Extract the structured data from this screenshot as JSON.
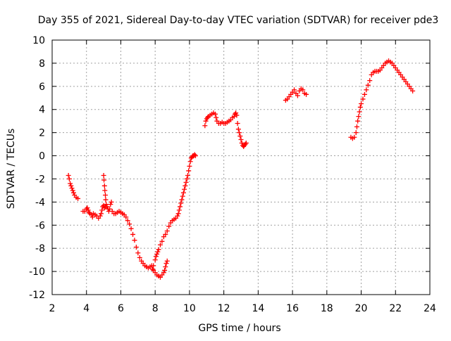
{
  "chart_data": {
    "type": "scatter",
    "title": "Day 355 of 2021, Sidereal Day-to-day VTEC variation (SDTVAR) for receiver pde3",
    "xlabel": "GPS time / hours",
    "ylabel": "SDTVAR / TECUs",
    "xlim": [
      2,
      24
    ],
    "ylim": [
      -12,
      10
    ],
    "xticks": [
      "2",
      "4",
      "6",
      "8",
      "10",
      "12",
      "14",
      "16",
      "18",
      "20",
      "22",
      "24"
    ],
    "yticks": [
      "-12",
      "-10",
      "-8",
      "-6",
      "-4",
      "-2",
      "0",
      "2",
      "4",
      "6",
      "8",
      "10"
    ],
    "grid": true,
    "marker": "plus",
    "color": "#ff0000",
    "series": [
      {
        "points": [
          [
            2.95,
            -1.7
          ],
          [
            3.0,
            -2.0
          ],
          [
            3.05,
            -2.4
          ],
          [
            3.1,
            -2.6
          ],
          [
            3.15,
            -2.8
          ],
          [
            3.2,
            -3.0
          ],
          [
            3.25,
            -3.2
          ],
          [
            3.3,
            -3.4
          ],
          [
            3.4,
            -3.6
          ],
          [
            3.5,
            -3.7
          ],
          [
            3.8,
            -4.8
          ],
          [
            3.9,
            -4.8
          ],
          [
            4.0,
            -4.6
          ],
          [
            4.05,
            -4.5
          ],
          [
            4.1,
            -4.7
          ],
          [
            4.15,
            -4.9
          ],
          [
            4.2,
            -5.0
          ],
          [
            4.3,
            -5.1
          ],
          [
            4.35,
            -5.3
          ],
          [
            4.4,
            -5.0
          ],
          [
            4.5,
            -5.1
          ],
          [
            4.6,
            -5.2
          ],
          [
            4.7,
            -5.4
          ],
          [
            4.8,
            -5.2
          ],
          [
            4.85,
            -5.0
          ],
          [
            4.9,
            -4.7
          ],
          [
            4.95,
            -4.4
          ],
          [
            5.0,
            -4.3
          ],
          [
            5.05,
            -4.5
          ],
          [
            5.1,
            -4.4
          ],
          [
            5.0,
            -1.7
          ],
          [
            5.02,
            -2.1
          ],
          [
            5.05,
            -2.6
          ],
          [
            5.07,
            -3.0
          ],
          [
            5.1,
            -3.4
          ],
          [
            5.12,
            -3.8
          ],
          [
            5.15,
            -4.2
          ],
          [
            5.2,
            -4.4
          ],
          [
            5.25,
            -4.6
          ],
          [
            5.3,
            -4.8
          ],
          [
            5.35,
            -4.6
          ],
          [
            5.4,
            -4.2
          ],
          [
            5.45,
            -4.0
          ],
          [
            5.5,
            -4.8
          ],
          [
            5.6,
            -5.0
          ],
          [
            5.7,
            -5.0
          ],
          [
            5.8,
            -4.9
          ],
          [
            5.9,
            -4.8
          ],
          [
            6.0,
            -4.9
          ],
          [
            6.1,
            -5.0
          ],
          [
            6.2,
            -5.1
          ],
          [
            6.3,
            -5.3
          ],
          [
            6.4,
            -5.6
          ],
          [
            6.5,
            -5.9
          ],
          [
            6.6,
            -6.3
          ],
          [
            6.7,
            -6.8
          ],
          [
            6.8,
            -7.3
          ],
          [
            6.9,
            -7.9
          ],
          [
            7.0,
            -8.4
          ],
          [
            7.1,
            -8.8
          ],
          [
            7.2,
            -9.1
          ],
          [
            7.3,
            -9.3
          ],
          [
            7.4,
            -9.5
          ],
          [
            7.5,
            -9.6
          ],
          [
            7.6,
            -9.7
          ],
          [
            7.7,
            -9.6
          ],
          [
            7.8,
            -9.5
          ],
          [
            7.85,
            -9.8
          ],
          [
            7.9,
            -9.9
          ],
          [
            8.0,
            -10.1
          ],
          [
            8.1,
            -10.3
          ],
          [
            8.2,
            -10.4
          ],
          [
            8.3,
            -10.5
          ],
          [
            8.4,
            -10.3
          ],
          [
            8.5,
            -10.1
          ],
          [
            8.55,
            -9.9
          ],
          [
            8.6,
            -9.6
          ],
          [
            8.65,
            -9.3
          ],
          [
            8.7,
            -9.1
          ],
          [
            7.9,
            -9.5
          ],
          [
            8.0,
            -9.0
          ],
          [
            8.05,
            -8.7
          ],
          [
            8.1,
            -8.5
          ],
          [
            8.15,
            -8.3
          ],
          [
            8.2,
            -8.1
          ],
          [
            8.3,
            -7.7
          ],
          [
            8.4,
            -7.4
          ],
          [
            8.5,
            -7.0
          ],
          [
            8.6,
            -6.8
          ],
          [
            8.7,
            -6.5
          ],
          [
            8.8,
            -6.1
          ],
          [
            8.9,
            -5.8
          ],
          [
            9.0,
            -5.6
          ],
          [
            9.1,
            -5.5
          ],
          [
            9.2,
            -5.4
          ],
          [
            9.3,
            -5.2
          ],
          [
            9.35,
            -5.0
          ],
          [
            9.4,
            -4.7
          ],
          [
            9.45,
            -4.4
          ],
          [
            9.5,
            -4.1
          ],
          [
            9.55,
            -3.8
          ],
          [
            9.6,
            -3.5
          ],
          [
            9.65,
            -3.2
          ],
          [
            9.7,
            -2.9
          ],
          [
            9.75,
            -2.6
          ],
          [
            9.8,
            -2.3
          ],
          [
            9.85,
            -2.0
          ],
          [
            9.9,
            -1.7
          ],
          [
            9.95,
            -1.3
          ],
          [
            10.0,
            -0.9
          ],
          [
            10.05,
            -0.5
          ],
          [
            10.1,
            -0.2
          ],
          [
            10.15,
            -0.1
          ],
          [
            10.2,
            0.0
          ],
          [
            10.25,
            0.0
          ],
          [
            10.3,
            0.1
          ],
          [
            10.35,
            0.0
          ],
          [
            10.9,
            2.6
          ],
          [
            10.95,
            3.0
          ],
          [
            11.0,
            3.2
          ],
          [
            11.05,
            3.3
          ],
          [
            11.1,
            3.4
          ],
          [
            11.2,
            3.5
          ],
          [
            11.3,
            3.6
          ],
          [
            11.4,
            3.7
          ],
          [
            11.5,
            3.6
          ],
          [
            11.55,
            3.3
          ],
          [
            11.6,
            3.0
          ],
          [
            11.7,
            2.8
          ],
          [
            11.8,
            2.8
          ],
          [
            11.9,
            2.9
          ],
          [
            12.0,
            2.8
          ],
          [
            12.1,
            2.8
          ],
          [
            12.2,
            2.9
          ],
          [
            12.3,
            3.0
          ],
          [
            12.4,
            3.1
          ],
          [
            12.5,
            3.3
          ],
          [
            12.6,
            3.4
          ],
          [
            12.65,
            3.6
          ],
          [
            12.7,
            3.7
          ],
          [
            12.75,
            3.5
          ],
          [
            12.8,
            2.8
          ],
          [
            12.85,
            2.3
          ],
          [
            12.9,
            2.0
          ],
          [
            12.95,
            1.7
          ],
          [
            13.0,
            1.4
          ],
          [
            13.05,
            1.1
          ],
          [
            13.1,
            0.9
          ],
          [
            13.15,
            0.8
          ],
          [
            13.2,
            0.9
          ],
          [
            13.25,
            1.0
          ],
          [
            13.3,
            1.1
          ],
          [
            15.6,
            4.8
          ],
          [
            15.7,
            4.9
          ],
          [
            15.8,
            5.1
          ],
          [
            15.9,
            5.3
          ],
          [
            16.0,
            5.5
          ],
          [
            16.1,
            5.7
          ],
          [
            16.2,
            5.4
          ],
          [
            16.3,
            5.2
          ],
          [
            16.4,
            5.6
          ],
          [
            16.5,
            5.8
          ],
          [
            16.6,
            5.7
          ],
          [
            16.7,
            5.4
          ],
          [
            16.8,
            5.3
          ],
          [
            19.4,
            1.6
          ],
          [
            19.5,
            1.5
          ],
          [
            19.6,
            1.6
          ],
          [
            19.7,
            2.0
          ],
          [
            19.75,
            2.5
          ],
          [
            19.8,
            3.0
          ],
          [
            19.85,
            3.4
          ],
          [
            19.9,
            3.8
          ],
          [
            19.95,
            4.2
          ],
          [
            20.0,
            4.5
          ],
          [
            20.1,
            4.9
          ],
          [
            20.2,
            5.3
          ],
          [
            20.3,
            5.7
          ],
          [
            20.4,
            6.1
          ],
          [
            20.5,
            6.5
          ],
          [
            20.6,
            7.0
          ],
          [
            20.7,
            7.2
          ],
          [
            20.8,
            7.3
          ],
          [
            20.9,
            7.3
          ],
          [
            21.0,
            7.3
          ],
          [
            21.1,
            7.4
          ],
          [
            21.2,
            7.6
          ],
          [
            21.3,
            7.8
          ],
          [
            21.4,
            8.0
          ],
          [
            21.5,
            8.1
          ],
          [
            21.6,
            8.2
          ],
          [
            21.7,
            8.1
          ],
          [
            21.8,
            8.0
          ],
          [
            21.9,
            7.8
          ],
          [
            22.0,
            7.6
          ],
          [
            22.1,
            7.4
          ],
          [
            22.2,
            7.2
          ],
          [
            22.3,
            7.0
          ],
          [
            22.4,
            6.8
          ],
          [
            22.5,
            6.6
          ],
          [
            22.6,
            6.4
          ],
          [
            22.7,
            6.2
          ],
          [
            22.8,
            6.0
          ],
          [
            22.9,
            5.8
          ],
          [
            23.0,
            5.6
          ]
        ]
      }
    ]
  }
}
